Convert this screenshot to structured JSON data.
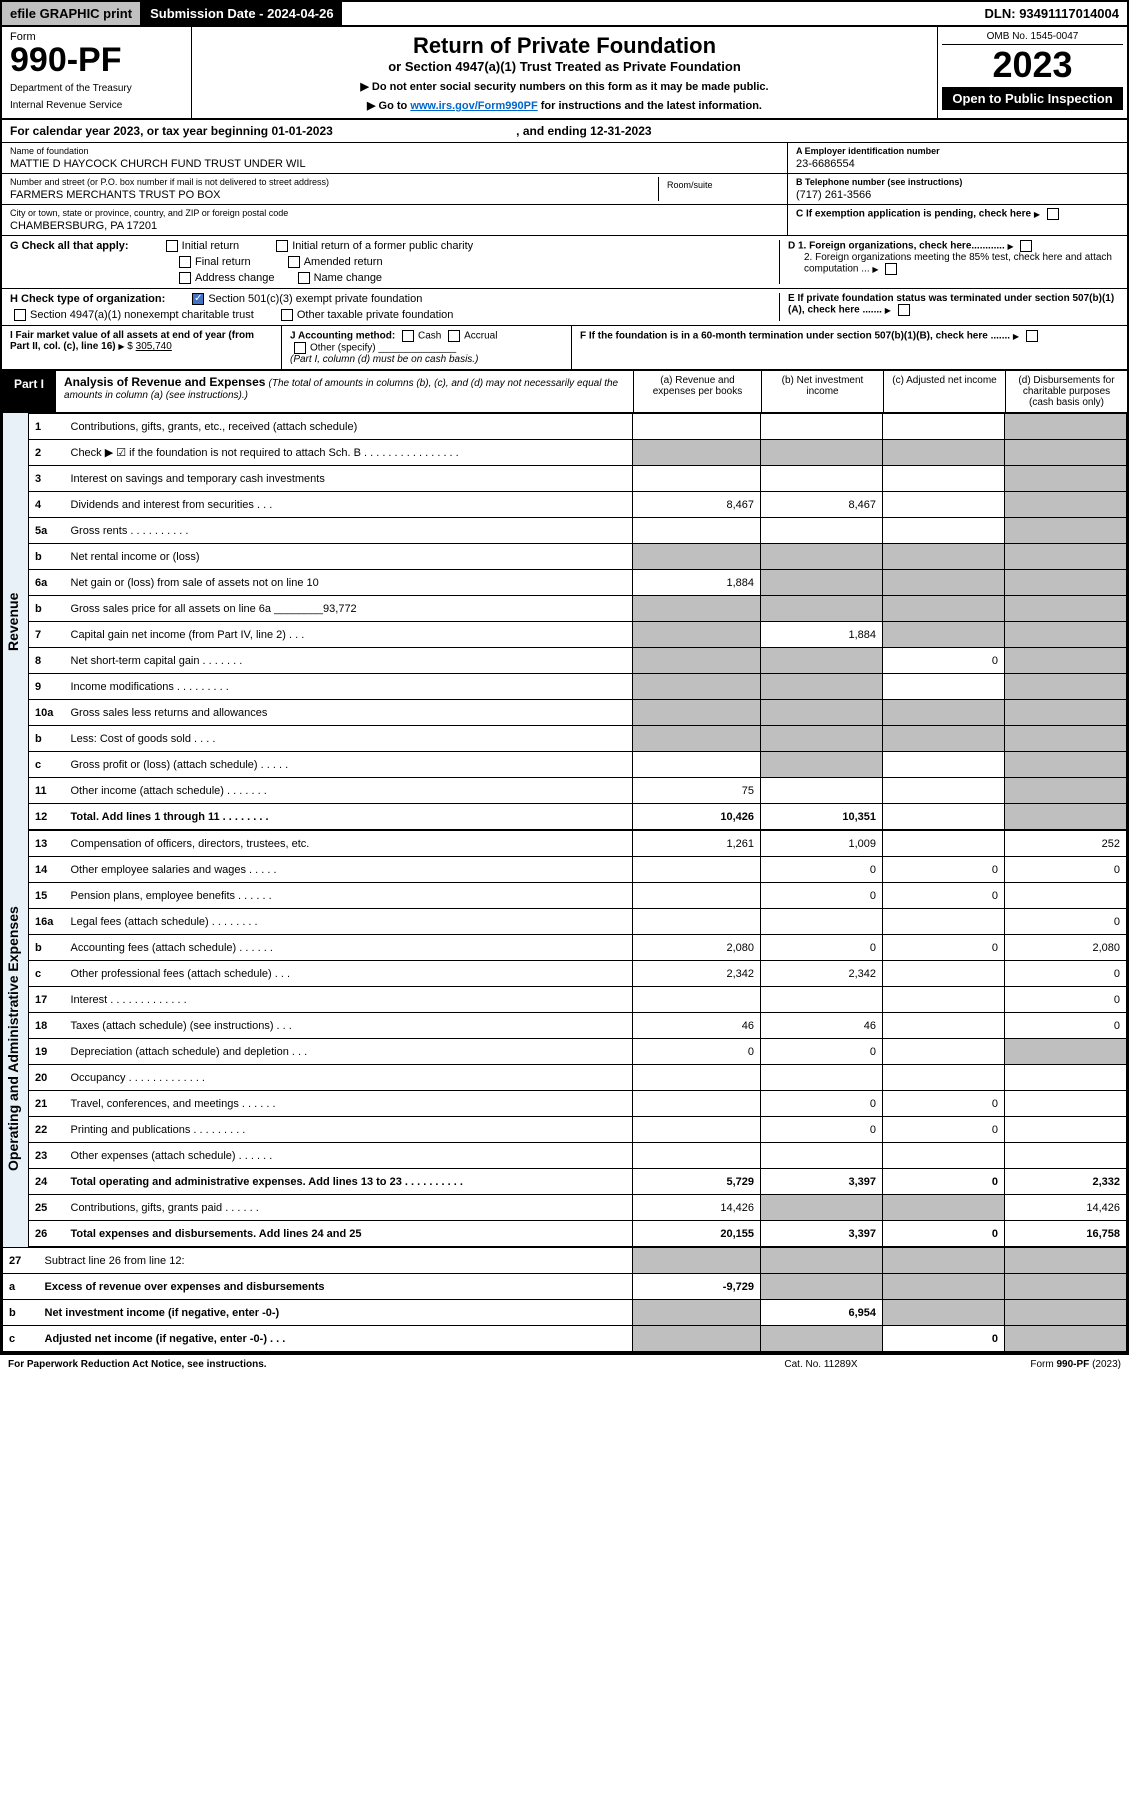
{
  "topbar": {
    "efile": "efile GRAPHIC print",
    "sub_label": "Submission Date - 2024-04-26",
    "dln": "DLN: 93491117014004"
  },
  "header": {
    "form_label": "Form",
    "form_num": "990-PF",
    "dept1": "Department of the Treasury",
    "dept2": "Internal Revenue Service",
    "title": "Return of Private Foundation",
    "subtitle": "or Section 4947(a)(1) Trust Treated as Private Foundation",
    "note1": "▶ Do not enter social security numbers on this form as it may be made public.",
    "note2_pre": "▶ Go to ",
    "note2_link": "www.irs.gov/Form990PF",
    "note2_post": " for instructions and the latest information.",
    "omb": "OMB No. 1545-0047",
    "year": "2023",
    "open": "Open to Public Inspection"
  },
  "calendar": {
    "text": "For calendar year 2023, or tax year beginning 01-01-2023",
    "ending": ", and ending 12-31-2023"
  },
  "foundation": {
    "name_label": "Name of foundation",
    "name": "MATTIE D HAYCOCK CHURCH FUND TRUST UNDER WIL",
    "addr_label": "Number and street (or P.O. box number if mail is not delivered to street address)",
    "addr": "FARMERS MERCHANTS TRUST PO BOX",
    "room_label": "Room/suite",
    "city_label": "City or town, state or province, country, and ZIP or foreign postal code",
    "city": "CHAMBERSBURG, PA  17201",
    "ein_label": "A Employer identification number",
    "ein": "23-6686554",
    "phone_label": "B Telephone number (see instructions)",
    "phone": "(717) 261-3566",
    "c_label": "C If exemption application is pending, check here",
    "d1_label": "D 1. Foreign organizations, check here............",
    "d2_label": "2. Foreign organizations meeting the 85% test, check here and attach computation ...",
    "e_label": "E  If private foundation status was terminated under section 507(b)(1)(A), check here .......",
    "f_label": "F  If the foundation is in a 60-month termination under section 507(b)(1)(B), check here ......."
  },
  "checks": {
    "g_label": "G Check all that apply:",
    "g_initial": "Initial return",
    "g_initial_former": "Initial return of a former public charity",
    "g_final": "Final return",
    "g_amended": "Amended return",
    "g_address": "Address change",
    "g_name": "Name change",
    "h_label": "H Check type of organization:",
    "h_501c3": "Section 501(c)(3) exempt private foundation",
    "h_4947": "Section 4947(a)(1) nonexempt charitable trust",
    "h_other": "Other taxable private foundation",
    "i_label": "I Fair market value of all assets at end of year (from Part II, col. (c), line 16)",
    "i_val": "305,740",
    "j_label": "J Accounting method:",
    "j_cash": "Cash",
    "j_accrual": "Accrual",
    "j_other": "Other (specify)",
    "j_note": "(Part I, column (d) must be on cash basis.)"
  },
  "part1": {
    "label": "Part I",
    "title": "Analysis of Revenue and Expenses",
    "subtitle": "(The total of amounts in columns (b), (c), and (d) may not necessarily equal the amounts in column (a) (see instructions).)",
    "col_a": "(a)   Revenue and expenses per books",
    "col_b": "(b)   Net investment income",
    "col_c": "(c)   Adjusted net income",
    "col_d": "(d)   Disbursements for charitable purposes (cash basis only)"
  },
  "side_labels": {
    "revenue": "Revenue",
    "expenses": "Operating and Administrative Expenses"
  },
  "rows": [
    {
      "n": "1",
      "desc": "Contributions, gifts, grants, etc., received (attach schedule)",
      "a": "",
      "b": "",
      "c": "",
      "d": "shade"
    },
    {
      "n": "2",
      "desc": "Check ▶ ☑ if the foundation is not required to attach Sch. B     .  .  .  .  .  .  .  .  .  .  .  .  .  .  .  .",
      "a": "shade",
      "b": "shade",
      "c": "shade",
      "d": "shade"
    },
    {
      "n": "3",
      "desc": "Interest on savings and temporary cash investments",
      "a": "",
      "b": "",
      "c": "",
      "d": "shade"
    },
    {
      "n": "4",
      "desc": "Dividends and interest from securities    .    .    .",
      "a": "8,467",
      "b": "8,467",
      "c": "",
      "d": "shade"
    },
    {
      "n": "5a",
      "desc": "Gross rents      .    .    .    .    .    .    .    .    .    .",
      "a": "",
      "b": "",
      "c": "",
      "d": "shade"
    },
    {
      "n": "b",
      "desc": "Net rental income or (loss)  ",
      "a": "shade",
      "b": "shade",
      "c": "shade",
      "d": "shade"
    },
    {
      "n": "6a",
      "desc": "Net gain or (loss) from sale of assets not on line 10",
      "a": "1,884",
      "b": "shade",
      "c": "shade",
      "d": "shade"
    },
    {
      "n": "b",
      "desc": "Gross sales price for all assets on line 6a ________93,772",
      "a": "shade",
      "b": "shade",
      "c": "shade",
      "d": "shade"
    },
    {
      "n": "7",
      "desc": "Capital gain net income (from Part IV, line 2)    .    .    .",
      "a": "shade",
      "b": "1,884",
      "c": "shade",
      "d": "shade"
    },
    {
      "n": "8",
      "desc": "Net short-term capital gain   .    .    .    .    .    .    .",
      "a": "shade",
      "b": "shade",
      "c": "0",
      "d": "shade"
    },
    {
      "n": "9",
      "desc": "Income modifications  .    .    .    .    .    .    .    .    .",
      "a": "shade",
      "b": "shade",
      "c": "",
      "d": "shade"
    },
    {
      "n": "10a",
      "desc": "Gross sales less returns and allowances",
      "a": "shade",
      "b": "shade",
      "c": "shade",
      "d": "shade"
    },
    {
      "n": "b",
      "desc": "Less: Cost of goods sold     .    .    .    .",
      "a": "shade",
      "b": "shade",
      "c": "shade",
      "d": "shade"
    },
    {
      "n": "c",
      "desc": "Gross profit or (loss) (attach schedule)     .    .    .    .    .",
      "a": "",
      "b": "shade",
      "c": "",
      "d": "shade"
    },
    {
      "n": "11",
      "desc": "Other income (attach schedule)    .    .    .    .    .    .    .",
      "a": "75",
      "b": "",
      "c": "",
      "d": "shade"
    },
    {
      "n": "12",
      "desc": "Total. Add lines 1 through 11    .    .    .    .    .    .    .    .",
      "a": "10,426",
      "b": "10,351",
      "c": "",
      "d": "shade",
      "bold": true
    }
  ],
  "exp_rows": [
    {
      "n": "13",
      "desc": "Compensation of officers, directors, trustees, etc.",
      "a": "1,261",
      "b": "1,009",
      "c": "",
      "d": "252"
    },
    {
      "n": "14",
      "desc": "Other employee salaries and wages     .    .    .    .    .",
      "a": "",
      "b": "0",
      "c": "0",
      "d": "0"
    },
    {
      "n": "15",
      "desc": "Pension plans, employee benefits  .    .    .    .    .    .",
      "a": "",
      "b": "0",
      "c": "0",
      "d": ""
    },
    {
      "n": "16a",
      "desc": "Legal fees (attach schedule)  .    .    .    .    .    .    .    .",
      "a": "",
      "b": "",
      "c": "",
      "d": "0"
    },
    {
      "n": "b",
      "desc": "Accounting fees (attach schedule)  .    .    .    .    .    .",
      "a": "2,080",
      "b": "0",
      "c": "0",
      "d": "2,080"
    },
    {
      "n": "c",
      "desc": "Other professional fees (attach schedule)     .    .    .",
      "a": "2,342",
      "b": "2,342",
      "c": "",
      "d": "0"
    },
    {
      "n": "17",
      "desc": "Interest   .    .    .    .    .    .    .    .    .    .    .    .    .",
      "a": "",
      "b": "",
      "c": "",
      "d": "0"
    },
    {
      "n": "18",
      "desc": "Taxes (attach schedule) (see instructions)     .    .    .",
      "a": "46",
      "b": "46",
      "c": "",
      "d": "0"
    },
    {
      "n": "19",
      "desc": "Depreciation (attach schedule) and depletion    .    .    .",
      "a": "0",
      "b": "0",
      "c": "",
      "d": "shade"
    },
    {
      "n": "20",
      "desc": "Occupancy  .    .    .    .    .    .    .    .    .    .    .    .    .",
      "a": "",
      "b": "",
      "c": "",
      "d": ""
    },
    {
      "n": "21",
      "desc": "Travel, conferences, and meetings  .    .    .    .    .    .",
      "a": "",
      "b": "0",
      "c": "0",
      "d": ""
    },
    {
      "n": "22",
      "desc": "Printing and publications  .    .    .    .    .    .    .    .    .",
      "a": "",
      "b": "0",
      "c": "0",
      "d": ""
    },
    {
      "n": "23",
      "desc": "Other expenses (attach schedule)  .    .    .    .    .    .",
      "a": "",
      "b": "",
      "c": "",
      "d": ""
    },
    {
      "n": "24",
      "desc": "Total operating and administrative expenses. Add lines 13 to 23    .    .    .    .    .    .    .    .    .    .",
      "a": "5,729",
      "b": "3,397",
      "c": "0",
      "d": "2,332",
      "bold": true
    },
    {
      "n": "25",
      "desc": "Contributions, gifts, grants paid     .    .    .    .    .    .",
      "a": "14,426",
      "b": "shade",
      "c": "shade",
      "d": "14,426"
    },
    {
      "n": "26",
      "desc": "Total expenses and disbursements. Add lines 24 and 25",
      "a": "20,155",
      "b": "3,397",
      "c": "0",
      "d": "16,758",
      "bold": true
    }
  ],
  "bottom_rows": [
    {
      "n": "27",
      "desc": "Subtract line 26 from line 12:",
      "a": "shade",
      "b": "shade",
      "c": "shade",
      "d": "shade"
    },
    {
      "n": "a",
      "desc": "Excess of revenue over expenses and disbursements",
      "a": "-9,729",
      "b": "shade",
      "c": "shade",
      "d": "shade",
      "bold": true
    },
    {
      "n": "b",
      "desc": "Net investment income (if negative, enter -0-)",
      "a": "shade",
      "b": "6,954",
      "c": "shade",
      "d": "shade",
      "bold": true
    },
    {
      "n": "c",
      "desc": "Adjusted net income (if negative, enter -0-)    .    .    .",
      "a": "shade",
      "b": "shade",
      "c": "0",
      "d": "shade",
      "bold": true
    }
  ],
  "footer": {
    "left": "For Paperwork Reduction Act Notice, see instructions.",
    "center": "Cat. No. 11289X",
    "right": "Form 990-PF (2023)"
  },
  "colors": {
    "black": "#000000",
    "white": "#ffffff",
    "gray_shade": "#bfbfbf",
    "header_gray": "#c0c0c0",
    "link_blue": "#0066cc",
    "check_blue": "#4472c4",
    "side_blue": "#e8f0f8"
  }
}
